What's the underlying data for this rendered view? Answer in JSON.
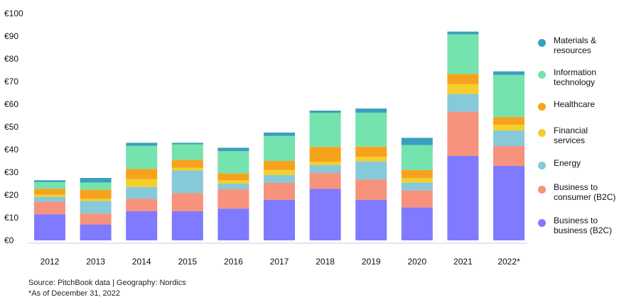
{
  "chart_data": {
    "type": "bar",
    "stacked": true,
    "categories": [
      "2012",
      "2013",
      "2014",
      "2015",
      "2016",
      "2017",
      "2018",
      "2019",
      "2020",
      "2021",
      "2022*"
    ],
    "y_ticks": [
      "€0",
      "€10",
      "€20",
      "€30",
      "€40",
      "€50",
      "€60",
      "€70",
      "€80",
      "€90",
      "€100"
    ],
    "ylim": [
      0,
      100
    ],
    "grid": false,
    "legend_position": "right",
    "series": [
      {
        "name": "Business to business (B2C)",
        "color": "#7f7aff",
        "values": [
          11.5,
          7,
          12.8,
          12.8,
          14,
          17.8,
          22.7,
          17.8,
          14.5,
          37.2,
          32.8
        ]
      },
      {
        "name": "Business to consumer (B2C)",
        "color": "#f7927c",
        "values": [
          5.5,
          4.8,
          5.5,
          8,
          8.5,
          7.5,
          7,
          9,
          7.5,
          19.5,
          8.8
        ]
      },
      {
        "name": "Energy",
        "color": "#86c9d8",
        "values": [
          2.2,
          5.5,
          5.2,
          10,
          2.5,
          3.5,
          3.5,
          8,
          3.5,
          7.8,
          6.8
        ]
      },
      {
        "name": "Financial services",
        "color": "#f4cf2b",
        "values": [
          1,
          1,
          3.5,
          1.2,
          1.5,
          2.2,
          1.5,
          2,
          2,
          4.3,
          2.5
        ]
      },
      {
        "name": "Healthcare",
        "color": "#f7a21c",
        "values": [
          2.5,
          4,
          4.5,
          3.5,
          3,
          4,
          6.5,
          4.5,
          3.5,
          4.5,
          3.5
        ]
      },
      {
        "name": "Information technology",
        "color": "#74e3ad",
        "values": [
          3,
          3.2,
          10.2,
          6.8,
          9.8,
          11,
          15,
          15,
          11,
          17.5,
          18.5
        ]
      },
      {
        "name": "Materials & resources",
        "color": "#3a9fbf",
        "values": [
          0.8,
          2,
          1.3,
          0.7,
          1.5,
          1.5,
          1,
          1.8,
          3.2,
          1.2,
          1.6
        ]
      }
    ],
    "legend": [
      {
        "label": "Materials &\nresources",
        "color": "#3a9fbf"
      },
      {
        "label": "Information\ntechnology",
        "color": "#74e3ad"
      },
      {
        "label": "Healthcare",
        "color": "#f7a21c"
      },
      {
        "label": "Financial\nservices",
        "color": "#f4cf2b"
      },
      {
        "label": "Energy",
        "color": "#86c9d8"
      },
      {
        "label": "Business to\nconsumer (B2C)",
        "color": "#f7927c"
      },
      {
        "label": "Business to\nbusiness (B2C)",
        "color": "#7f7aff"
      }
    ]
  },
  "footnotes": {
    "source": "Source: PitchBook data  |  Geography: Nordics",
    "asof": "*As of December 31, 2022"
  }
}
